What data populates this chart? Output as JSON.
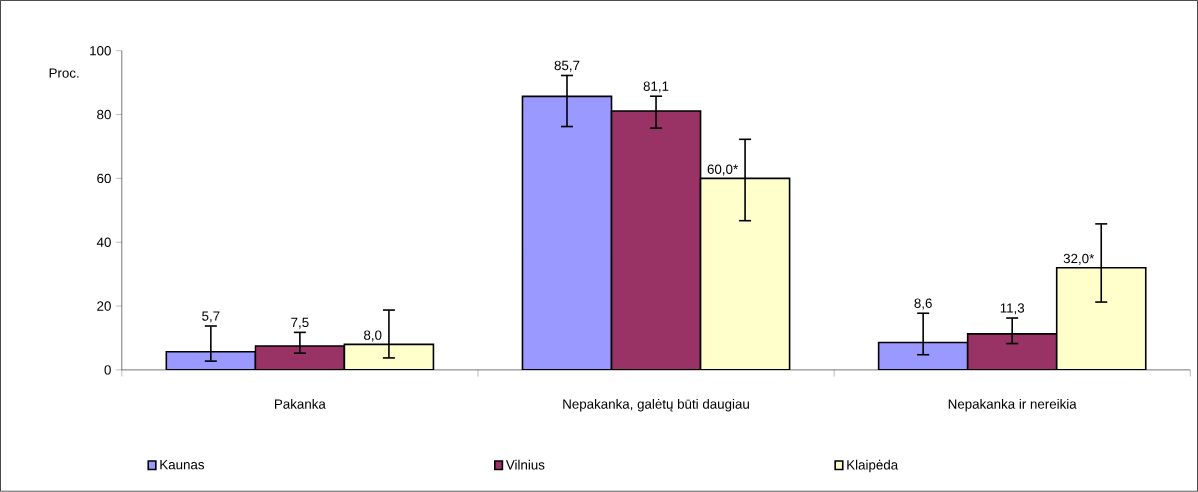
{
  "chart_data": {
    "type": "bar",
    "ylabel": "Proc.",
    "categories": [
      "Pakanka",
      "Nepakanka, galėtų būti daugiau",
      "Nepakanka ir nereikia"
    ],
    "series": [
      {
        "name": "Kaunas",
        "color": "#9999ff",
        "values": [
          5.7,
          85.7,
          8.6
        ],
        "errors": [
          [
            2.5,
            14
          ],
          [
            76,
            92.5
          ],
          [
            4.5,
            18
          ]
        ],
        "value_labels": [
          "5,7",
          "85,7",
          "8,6"
        ]
      },
      {
        "name": "Vilnius",
        "color": "#993366",
        "values": [
          7.5,
          81.1,
          11.3
        ],
        "errors": [
          [
            5,
            12
          ],
          [
            75.5,
            86
          ],
          [
            8,
            16.5
          ]
        ],
        "value_labels": [
          "7,5",
          "81,1",
          "11,3"
        ]
      },
      {
        "name": "Klaipėda",
        "color": "#ffffcc",
        "values": [
          8.0,
          60.0,
          32.0
        ],
        "errors": [
          [
            3.5,
            19
          ],
          [
            46.5,
            72.5
          ],
          [
            21,
            46
          ]
        ],
        "value_labels": [
          "8,0",
          "60,0*",
          "32,0*"
        ]
      }
    ],
    "ylim": [
      0,
      100
    ],
    "yticks": [
      0,
      20,
      40,
      60,
      80,
      100
    ],
    "grid": false,
    "legend": "bottom"
  }
}
